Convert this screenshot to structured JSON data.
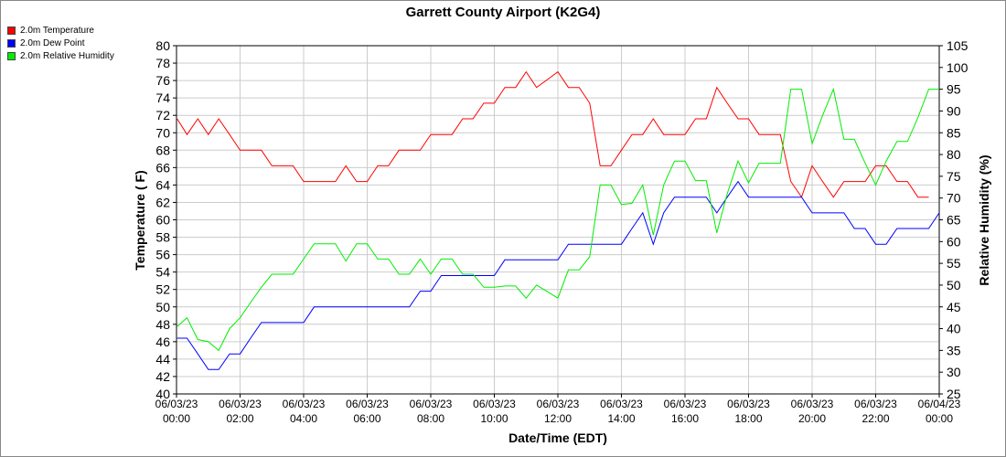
{
  "chart_data": {
    "type": "line",
    "title": "Garrett County Airport (K2G4)",
    "xlabel": "Date/Time (EDT)",
    "ylabel_left": "Temperature ( F)",
    "ylabel_right": "Relative Humidity (%)",
    "ylim_left": [
      40,
      80
    ],
    "ylim_right": [
      25,
      105
    ],
    "y_ticks_left": [
      40,
      42,
      44,
      46,
      48,
      50,
      52,
      54,
      56,
      58,
      60,
      62,
      64,
      66,
      68,
      70,
      72,
      74,
      76,
      78,
      80
    ],
    "y_ticks_right": [
      25,
      30,
      35,
      40,
      45,
      50,
      55,
      60,
      65,
      70,
      75,
      80,
      85,
      90,
      95,
      100,
      105
    ],
    "x_range_hours": [
      0,
      24
    ],
    "x_ticks": [
      {
        "h": 0,
        "date": "06/03/23",
        "time": "00:00"
      },
      {
        "h": 2,
        "date": "06/03/23",
        "time": "02:00"
      },
      {
        "h": 4,
        "date": "06/03/23",
        "time": "04:00"
      },
      {
        "h": 6,
        "date": "06/03/23",
        "time": "06:00"
      },
      {
        "h": 8,
        "date": "06/03/23",
        "time": "08:00"
      },
      {
        "h": 10,
        "date": "06/03/23",
        "time": "10:00"
      },
      {
        "h": 12,
        "date": "06/03/23",
        "time": "12:00"
      },
      {
        "h": 14,
        "date": "06/03/23",
        "time": "14:00"
      },
      {
        "h": 16,
        "date": "06/03/23",
        "time": "16:00"
      },
      {
        "h": 18,
        "date": "06/03/23",
        "time": "18:00"
      },
      {
        "h": 20,
        "date": "06/03/23",
        "time": "20:00"
      },
      {
        "h": 22,
        "date": "06/03/23",
        "time": "22:00"
      },
      {
        "h": 24,
        "date": "06/04/23",
        "time": "00:00"
      }
    ],
    "grid": true,
    "legend_position": "top-left",
    "series": [
      {
        "name": "2.0m Temperature",
        "color": "#ff0000",
        "axis": "left",
        "x": [
          0.02,
          0.33,
          0.67,
          1.0,
          1.33,
          1.67,
          2.0,
          2.33,
          2.67,
          3.0,
          3.33,
          3.67,
          4.0,
          4.33,
          4.67,
          5.0,
          5.33,
          5.67,
          6.0,
          6.33,
          6.67,
          7.0,
          7.33,
          7.67,
          8.0,
          8.33,
          8.67,
          9.0,
          9.33,
          9.67,
          10.0,
          10.33,
          10.67,
          11.0,
          11.33,
          11.67,
          12.0,
          12.33,
          12.67,
          13.0,
          13.33,
          13.67,
          14.0,
          14.33,
          14.67,
          15.0,
          15.33,
          15.67,
          16.0,
          16.33,
          16.67,
          17.0,
          17.33,
          17.67,
          18.0,
          18.33,
          18.67,
          19.0,
          19.33,
          19.67,
          20.0,
          20.33,
          20.67,
          21.0,
          21.33,
          21.67,
          22.0,
          22.33,
          22.67,
          23.0,
          23.33,
          23.67
        ],
        "values": [
          71.6,
          69.8,
          71.6,
          69.8,
          71.6,
          69.8,
          68.0,
          68.0,
          68.0,
          66.2,
          66.2,
          66.2,
          64.4,
          64.4,
          64.4,
          64.4,
          66.2,
          64.4,
          64.4,
          66.2,
          66.2,
          68.0,
          68.0,
          68.0,
          69.8,
          69.8,
          69.8,
          71.6,
          71.6,
          73.4,
          73.4,
          75.2,
          75.2,
          77.0,
          75.2,
          76.1,
          77.0,
          75.2,
          75.2,
          73.4,
          66.2,
          66.2,
          68.0,
          69.8,
          69.8,
          71.6,
          69.8,
          69.8,
          69.8,
          71.6,
          71.6,
          75.2,
          73.4,
          71.6,
          71.6,
          69.8,
          69.8,
          69.8,
          64.4,
          62.6,
          66.2,
          64.4,
          62.6,
          64.4,
          64.4,
          64.4,
          66.2,
          66.2,
          64.4,
          64.4,
          62.6,
          62.6
        ]
      },
      {
        "name": "2.0m Dew Point",
        "color": "#0000ff",
        "axis": "left",
        "x": [
          0.02,
          0.33,
          0.67,
          1.0,
          1.33,
          1.67,
          2.0,
          2.33,
          2.67,
          3.0,
          3.33,
          3.67,
          4.0,
          4.33,
          4.67,
          5.0,
          5.33,
          5.67,
          6.0,
          6.33,
          6.67,
          7.0,
          7.33,
          7.67,
          8.0,
          8.33,
          8.67,
          9.0,
          9.33,
          9.67,
          10.0,
          10.33,
          10.67,
          11.0,
          11.33,
          11.67,
          12.0,
          12.33,
          12.67,
          13.0,
          13.33,
          13.67,
          14.0,
          14.33,
          14.67,
          15.0,
          15.33,
          15.67,
          16.0,
          16.33,
          16.67,
          17.0,
          17.33,
          17.67,
          18.0,
          18.33,
          18.67,
          19.0,
          19.33,
          19.67,
          20.0,
          20.33,
          20.67,
          21.0,
          21.33,
          21.67,
          22.0,
          22.33,
          22.67,
          23.0,
          23.33,
          23.67,
          24.0
        ],
        "values": [
          46.4,
          46.4,
          44.6,
          42.8,
          42.8,
          44.6,
          44.6,
          46.4,
          48.2,
          48.2,
          48.2,
          48.2,
          48.2,
          50.0,
          50.0,
          50.0,
          50.0,
          50.0,
          50.0,
          50.0,
          50.0,
          50.0,
          50.0,
          51.8,
          51.8,
          53.6,
          53.6,
          53.6,
          53.6,
          53.6,
          53.6,
          55.4,
          55.4,
          55.4,
          55.4,
          55.4,
          55.4,
          57.2,
          57.2,
          57.2,
          57.2,
          57.2,
          57.2,
          59.0,
          60.8,
          57.2,
          60.8,
          62.6,
          62.6,
          62.6,
          62.6,
          60.8,
          62.6,
          64.4,
          62.6,
          62.6,
          62.6,
          62.6,
          62.6,
          62.6,
          60.8,
          60.8,
          60.8,
          60.8,
          59.0,
          59.0,
          57.2,
          57.2,
          59.0,
          59.0,
          59.0,
          59.0,
          60.8
        ]
      },
      {
        "name": "2.0m Relative Humidity",
        "color": "#00ee00",
        "axis": "right",
        "x": [
          0.02,
          0.33,
          0.67,
          1.0,
          1.33,
          1.67,
          2.0,
          2.33,
          2.67,
          3.0,
          3.33,
          3.67,
          4.0,
          4.33,
          4.67,
          5.0,
          5.33,
          5.67,
          6.0,
          6.33,
          6.67,
          7.0,
          7.33,
          7.67,
          8.0,
          8.33,
          8.67,
          9.0,
          9.33,
          9.67,
          10.0,
          10.33,
          10.67,
          11.0,
          11.33,
          11.67,
          12.0,
          12.33,
          12.67,
          13.0,
          13.33,
          13.67,
          14.0,
          14.33,
          14.67,
          15.0,
          15.33,
          15.67,
          16.0,
          16.33,
          16.67,
          17.0,
          17.33,
          17.67,
          18.0,
          18.33,
          18.67,
          19.0,
          19.33,
          19.67,
          20.0,
          20.33,
          20.67,
          21.0,
          21.33,
          21.67,
          22.0,
          22.33,
          22.67,
          23.0,
          23.33,
          23.67,
          24.0
        ],
        "values": [
          40.5,
          42.5,
          37.5,
          37.0,
          35.0,
          40.0,
          42.5,
          46.0,
          49.5,
          52.5,
          52.5,
          52.5,
          56.0,
          59.5,
          59.5,
          59.5,
          55.5,
          59.5,
          59.5,
          56.0,
          56.0,
          52.5,
          52.5,
          56.0,
          52.5,
          56.0,
          56.0,
          52.5,
          52.5,
          49.5,
          49.5,
          49.8,
          49.8,
          47.0,
          50.0,
          48.5,
          47.0,
          53.5,
          53.5,
          56.5,
          73.0,
          73.0,
          68.5,
          68.8,
          73.0,
          61.5,
          73.0,
          78.5,
          78.5,
          74.0,
          74.0,
          62.0,
          71.0,
          78.5,
          73.5,
          78.0,
          78.0,
          78.0,
          95.0,
          95.0,
          82.5,
          89.0,
          95.0,
          83.5,
          83.5,
          78.0,
          73.0,
          78.5,
          83.0,
          83.0,
          88.5,
          95.0,
          95.0
        ]
      }
    ]
  }
}
